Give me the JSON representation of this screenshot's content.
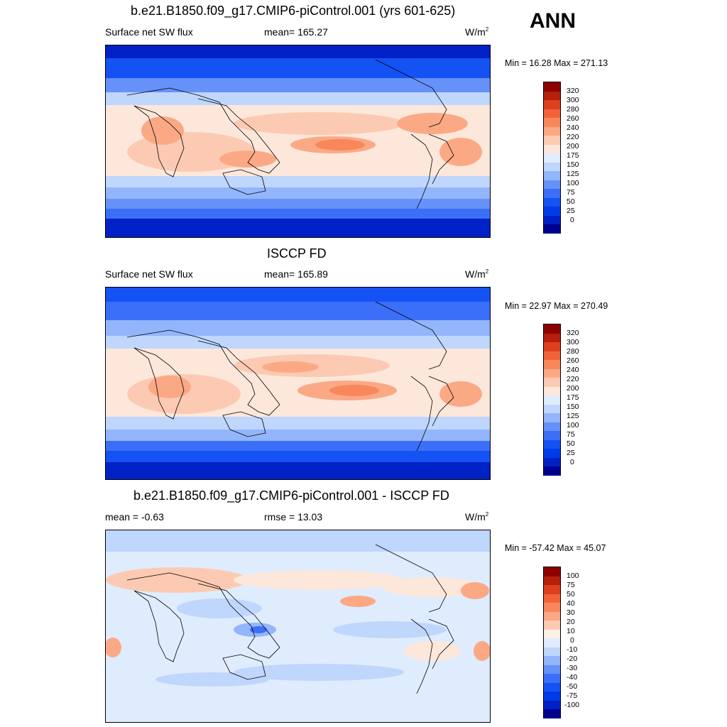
{
  "season": "ANN",
  "colors": {
    "ramp_sw": [
      "#00008f",
      "#0021c6",
      "#003be9",
      "#1452f4",
      "#3b6ff7",
      "#6591f9",
      "#93b5fb",
      "#bfd6fd",
      "#dfecfd",
      "#fde7db",
      "#fccab2",
      "#fba985",
      "#f8875c",
      "#f1643a",
      "#dc401f",
      "#b51f0b",
      "#8f0000"
    ],
    "ramp_diff": [
      "#00008f",
      "#0021c6",
      "#003be9",
      "#1452f4",
      "#3b6ff7",
      "#6591f9",
      "#93b5fb",
      "#bfd6fd",
      "#dfecfd",
      "#fdf0e6",
      "#fccab2",
      "#fba985",
      "#f8875c",
      "#f1643a",
      "#dc401f",
      "#b51f0b",
      "#8f0000"
    ]
  },
  "panels": [
    {
      "title": "b.e21.B1850.f09_g17.CMIP6-piControl.001 (yrs 601-625)",
      "left_label": "Surface net SW flux",
      "center_label": "mean= 165.27",
      "units": "W/m",
      "units_exp": "2",
      "minmax": "Min =  16.28 Max = 271.13",
      "colorbar_labels": [
        "320",
        "300",
        "280",
        "260",
        "240",
        "220",
        "200",
        "175",
        "150",
        "125",
        "100",
        "75",
        "50",
        "25",
        "0"
      ]
    },
    {
      "title": "ISCCP FD",
      "left_label": "Surface net SW flux",
      "center_label": "mean= 165.89",
      "units": "W/m",
      "units_exp": "2",
      "minmax": "Min =  22.97 Max = 270.49",
      "colorbar_labels": [
        "320",
        "300",
        "280",
        "260",
        "240",
        "220",
        "200",
        "175",
        "150",
        "125",
        "100",
        "75",
        "50",
        "25",
        "0"
      ]
    },
    {
      "title": "b.e21.B1850.f09_g17.CMIP6-piControl.001 - ISCCP FD",
      "left_label": "mean =  -0.63",
      "center_label": "rmse =  13.03",
      "units": "W/m",
      "units_exp": "2",
      "minmax": "Min = -57.42 Max =  45.07",
      "colorbar_labels": [
        "100",
        "75",
        "50",
        "40",
        "30",
        "20",
        "10",
        "0",
        "-10",
        "-20",
        "-30",
        "-40",
        "-50",
        "-75",
        "-100"
      ]
    }
  ]
}
